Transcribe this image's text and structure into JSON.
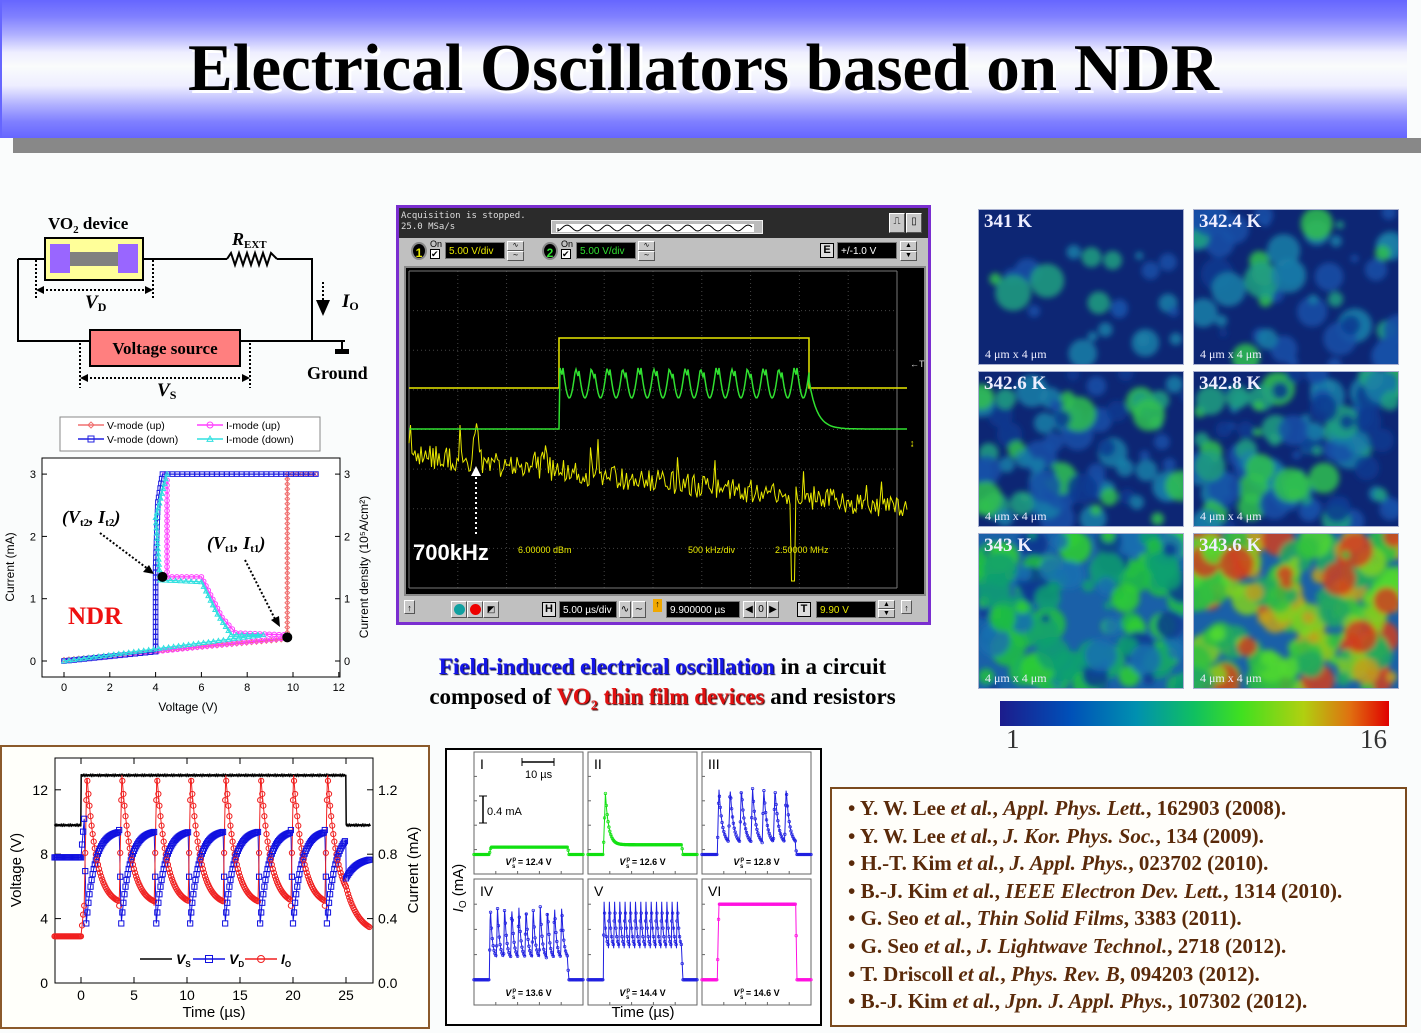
{
  "title": "Electrical Oscillators based on NDR",
  "circuit": {
    "device_label": "VO",
    "device_sub": "2",
    "device_suffix": " device",
    "rext": "R",
    "rext_sub": "EXT",
    "vd": "V",
    "vd_sub": "D",
    "io": "I",
    "io_sub": "O",
    "source": "Voltage source",
    "vs": "V",
    "vs_sub": "S",
    "ground": "Ground"
  },
  "iv_annotations": {
    "ndr": "NDR",
    "vt2": "(V",
    "vt2_sub": "t2",
    "it2": ", I",
    "it2_sub": "t2",
    "close": ")",
    "vt1": "(V",
    "vt1_sub": "t1",
    "it1": ", I",
    "it1_sub": "t1"
  },
  "oscilloscope": {
    "status": "Acquisition is stopped.",
    "rate": "25.0 MSa/s",
    "ch1": {
      "num": "1",
      "on": "On",
      "scale": "5.00 V/div"
    },
    "ch2": {
      "num": "2",
      "on": "On",
      "scale": "5.00 V/div"
    },
    "e_label": "E",
    "e_value": "+/-1.0 V",
    "fft_ref": "6.00000 dBm",
    "fft_span": "500 kHz/div",
    "fft_center": "2.50000 MHz",
    "peak_label": "700kHz",
    "trigger_marker": "←T",
    "h_label": "H",
    "timebase": "5.00 µs/div",
    "delay": "9.900000 µs",
    "delay_step": "0",
    "t_label": "T",
    "trigger_level": "9.90 V",
    "colors": {
      "ch1": "#e8e800",
      "ch2": "#30e030",
      "frame": "#7a2ed0"
    }
  },
  "caption": {
    "line1_highlight": "Field-induced electrical  oscillation",
    "line1_rest": " in a circuit",
    "line2_start": "composed of ",
    "line2_highlight": "VO",
    "line2_sub": "2",
    "line2_highlight_rest": " thin film devices",
    "line2_end": " and resistors"
  },
  "thermal_maps": {
    "tiles": [
      {
        "temp": "341 K",
        "scale": "4 μm x 4 μm",
        "metallic_fraction": 0.02
      },
      {
        "temp": "342.4 K",
        "scale": "4 μm x 4 μm",
        "metallic_fraction": 0.2
      },
      {
        "temp": "342.6 K",
        "scale": "4 μm x 4 μm",
        "metallic_fraction": 0.35
      },
      {
        "temp": "342.8 K",
        "scale": "4 μm x 4 μm",
        "metallic_fraction": 0.5
      },
      {
        "temp": "343 K",
        "scale": "4 μm x 4 μm",
        "metallic_fraction": 0.7
      },
      {
        "temp": "343.6 K",
        "scale": "4 μm x 4 μm",
        "metallic_fraction": 0.95
      }
    ],
    "colorbar": {
      "min": "1",
      "max": "16"
    }
  },
  "references_sep": ", ",
  "references": [
    {
      "author": "• Y. W. Lee ",
      "etal": "et al.",
      "journal": "Appl. Phys. Lett.",
      "rest": ", 162903 (2008)."
    },
    {
      "author": "• Y. W. Lee ",
      "etal": "et al.",
      "journal": "J. Kor. Phys. Soc.",
      "rest": ", 134 (2009)."
    },
    {
      "author": "• H.-T. Kim ",
      "etal": "et al.",
      "journal": "J. Appl. Phys.",
      "rest": ", 023702 (2010)."
    },
    {
      "author": "• B.-J. Kim ",
      "etal": "et al.",
      "journal": "IEEE Electron Dev. Lett.",
      "rest": ", 1314 (2010)."
    },
    {
      "author": "• G. Seo ",
      "etal": "et al.",
      "journal": "Thin Solid Films",
      "rest": ", 3383 (2011)."
    },
    {
      "author": "• G. Seo ",
      "etal": "et al.",
      "journal": "J. Lightwave Technol.",
      "rest": ", 2718 (2012)."
    },
    {
      "author": "• T. Driscoll ",
      "etal": "et al.",
      "journal": "Phys. Rev. B",
      "rest": ", 094203 (2012)."
    },
    {
      "author": "• B.-J. Kim ",
      "etal": "et al.",
      "journal": "Jpn. J. Appl. Phys.",
      "rest": ", 107302 (2012)."
    }
  ],
  "chart_data": [
    {
      "type": "line",
      "title": "",
      "xlabel": "Voltage (V)",
      "ylabel": "Current (mA)",
      "y2label": "Current density (10⁵A/cm²)",
      "xlim": [
        -1,
        12
      ],
      "ylim": [
        -0.3,
        3.2
      ],
      "xticks": [
        0,
        2,
        4,
        6,
        8,
        10,
        12
      ],
      "yticks": [
        0,
        1,
        2,
        3
      ],
      "y2ticks": [
        0,
        1,
        2,
        3
      ],
      "legend_position": "top",
      "series": [
        {
          "name": "V-mode (up)",
          "color": "#f07070",
          "marker": "diamond",
          "points": [
            [
              0,
              0.02
            ],
            [
              9.7,
              0.35
            ],
            [
              9.75,
              0.38
            ],
            [
              9.75,
              3.0
            ],
            [
              11,
              3.0
            ]
          ]
        },
        {
          "name": "I-mode (up)",
          "color": "#ff40ff",
          "marker": "circle",
          "points": [
            [
              0,
              0
            ],
            [
              9.7,
              0.37
            ],
            [
              9.6,
              0.42
            ],
            [
              7.5,
              0.45
            ],
            [
              6.9,
              0.7
            ],
            [
              6.0,
              1.35
            ],
            [
              4.5,
              1.35
            ],
            [
              4.5,
              2.9
            ],
            [
              4.4,
              3.0
            ]
          ]
        },
        {
          "name": "V-mode (down)",
          "color": "#2020e0",
          "marker": "square",
          "points": [
            [
              11,
              3.0
            ],
            [
              4.3,
              3.0
            ],
            [
              4.1,
              2.55
            ],
            [
              4.0,
              1.5
            ],
            [
              4.0,
              0.15
            ],
            [
              0,
              0
            ]
          ]
        },
        {
          "name": "I-mode (down)",
          "color": "#30e0e0",
          "marker": "triangle",
          "points": [
            [
              4.5,
              3.0
            ],
            [
              4.0,
              2.3
            ],
            [
              4.2,
              1.3
            ],
            [
              6.0,
              1.27
            ],
            [
              6.7,
              0.75
            ],
            [
              7.3,
              0.42
            ],
            [
              8.7,
              0.42
            ],
            [
              0,
              0
            ]
          ]
        }
      ],
      "threshold_points": [
        [
          4.3,
          1.35
        ],
        [
          9.75,
          0.38
        ]
      ]
    },
    {
      "type": "line",
      "xlabel": "Time (µs)",
      "ylabel": "Voltage (V)",
      "y2label": "Current (mA)",
      "xlim": [
        -2.5,
        27.3
      ],
      "ylim": [
        0,
        14
      ],
      "y2lim": [
        0,
        1.4
      ],
      "xticks": [
        0,
        5,
        10,
        15,
        20,
        25
      ],
      "yticks": [
        0,
        4,
        8,
        12
      ],
      "y2ticks": [
        "0.0",
        "0.4",
        "0.8",
        "1.2"
      ],
      "legend_position": "bottom-center",
      "series": [
        {
          "name": "V",
          "sub": "S",
          "color": "#000000",
          "marker": "none",
          "pulse_on": [
            0,
            25
          ],
          "low": 9.8,
          "high": 12.9
        },
        {
          "name": "V",
          "sub": "D",
          "color": "#1010e0",
          "marker": "square",
          "idle": 7.8,
          "max": 9.5,
          "min": 3.7
        },
        {
          "name": "I",
          "sub": "O",
          "color": "#f02020",
          "marker": "circle",
          "idle": 0.29,
          "peak": 1.3,
          "min": 0.48
        }
      ],
      "spike_times_us": [
        0.3,
        3.6,
        6.9,
        10.1,
        13.4,
        16.7,
        19.8,
        23.0
      ]
    },
    {
      "type": "line",
      "xlabel": "Time (µs)",
      "ylabel": "I",
      "ylabel_sub": "O",
      "ylabel_unit": " (mA)",
      "scale_time": "10 µs",
      "scale_current": "0.4 mA",
      "panels": [
        {
          "label": "I",
          "vs_prefix": "V",
          "vs_sub": "s",
          "vs_sup": "p",
          "vs": " = 12.4 V",
          "color": "#10e010",
          "mode": "step",
          "spikes": 0
        },
        {
          "label": "II",
          "vs_prefix": "V",
          "vs_sub": "s",
          "vs_sup": "p",
          "vs": " = 12.6 V",
          "color": "#10e010",
          "mode": "single",
          "spikes": 1
        },
        {
          "label": "III",
          "vs_prefix": "V",
          "vs_sub": "s",
          "vs_sup": "p",
          "vs": " = 12.8 V",
          "color": "#2020e0",
          "mode": "osc",
          "spikes": 7
        },
        {
          "label": "IV",
          "vs_prefix": "V",
          "vs_sub": "s",
          "vs_sup": "p",
          "vs": " = 13.6 V",
          "color": "#2020e0",
          "mode": "osc",
          "spikes": 11
        },
        {
          "label": "V",
          "vs_prefix": "V",
          "vs_sub": "s",
          "vs_sup": "p",
          "vs": " = 14.4 V",
          "color": "#2020e0",
          "mode": "osc",
          "spikes": 15
        },
        {
          "label": "VI",
          "vs_prefix": "V",
          "vs_sub": "s",
          "vs_sup": "p",
          "vs": " = 14.6 V",
          "color": "#ff10e0",
          "mode": "step",
          "spikes": 0
        }
      ]
    }
  ]
}
